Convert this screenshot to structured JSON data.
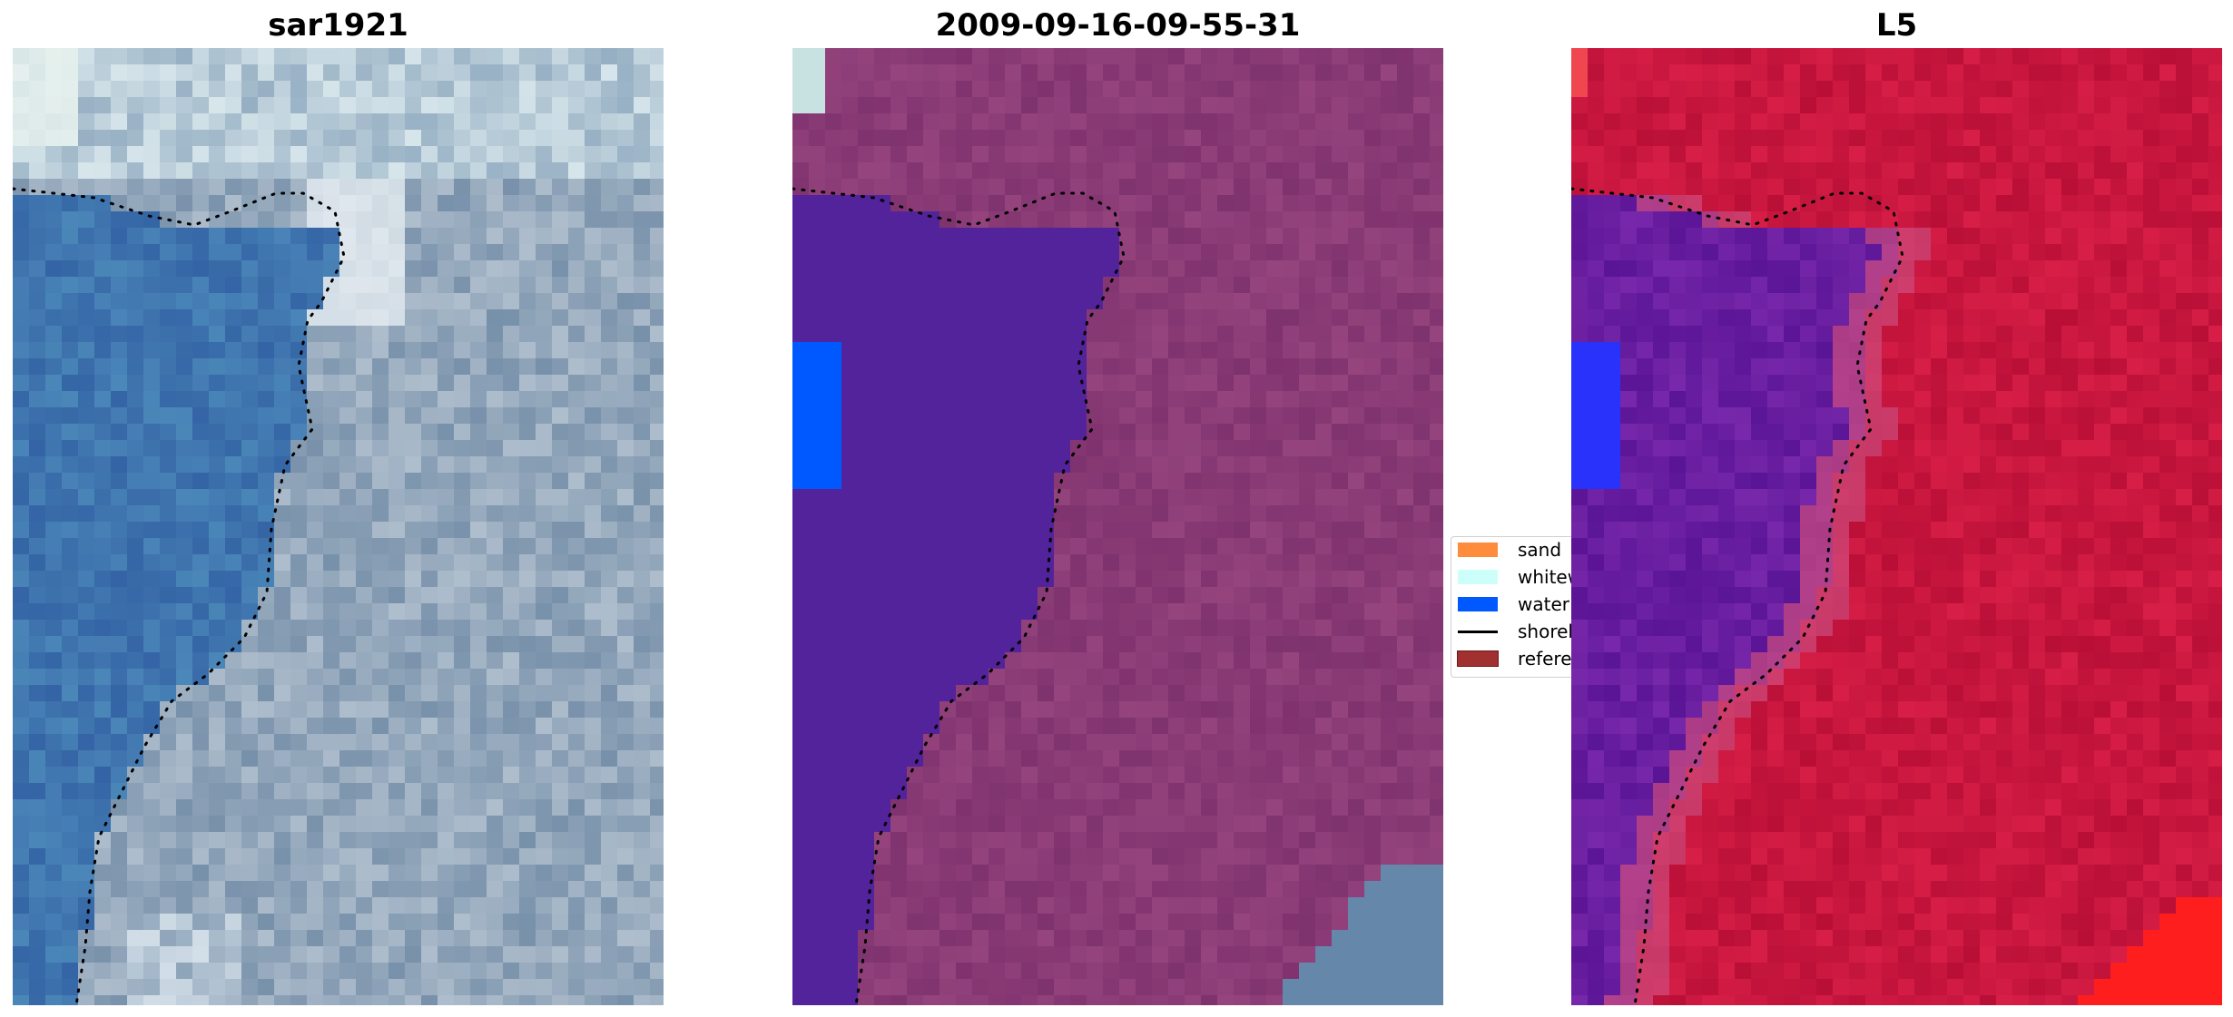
{
  "panels": [
    {
      "title": "sar1921",
      "style": "rgb"
    },
    {
      "title": "2009-09-16-09-55-31",
      "style": "classified"
    },
    {
      "title": "L5",
      "style": "index"
    }
  ],
  "legend": [
    {
      "label": "sand",
      "color": "#ff8c3c"
    },
    {
      "label": "whitewater",
      "color": "#ccfffa"
    },
    {
      "label": "water",
      "color": "#0059ff"
    },
    {
      "label": "shoreline",
      "color": "#000000"
    },
    {
      "label": "reference",
      "color": "#a13030"
    }
  ],
  "colors": {
    "rgb_water": "#3a6fae",
    "rgb_land": "#8aa0b4",
    "classified_water": "#53239c",
    "classified_land": "#8a3c78",
    "index_water": "#6a1aa0",
    "index_land": "#c8143c"
  }
}
